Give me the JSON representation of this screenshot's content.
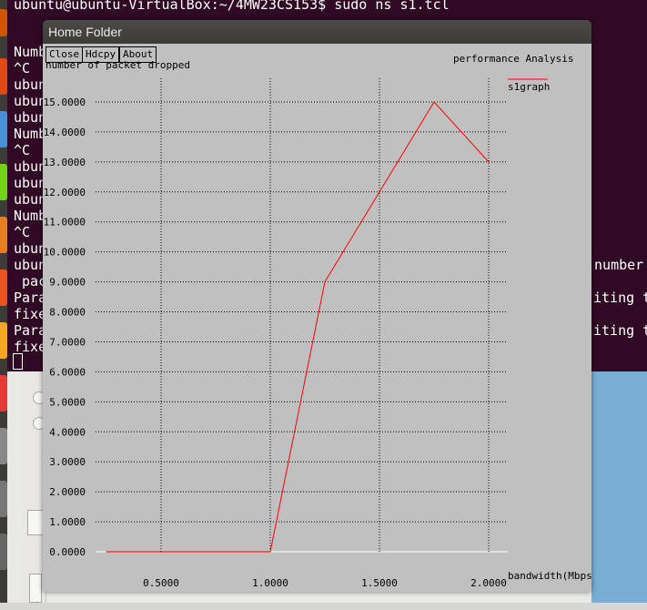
{
  "terminal": {
    "lines": [
      "ubuntu@ubuntu-VirtualBox:~/4MW23CS153$ sudo ns s1.tcl",
      "Numb",
      "^C",
      "ubun",
      "ubun",
      "ubun",
      "Numb",
      "^C",
      "ubun",
      "ubun",
      "ubun",
      "Numb",
      "^C",
      "ubun",
      "ubun",
      " pac",
      "Para",
      "fixe",
      "Para",
      "fixe"
    ],
    "right_texts": [
      "'number",
      "iting to",
      "iting to"
    ]
  },
  "window": {
    "title": "Home Folder",
    "buttons": {
      "close": "Close",
      "hdcpy": "Hdcpy",
      "about": "About"
    }
  },
  "chart_data": {
    "type": "line",
    "title": "performance Analysis",
    "xlabel": "bandwidth(Mbps)",
    "ylabel": "number of packet dropped",
    "xlim": [
      0.25,
      2.1
    ],
    "ylim": [
      0,
      15.0
    ],
    "x_ticks": [
      "0.5000",
      "1.0000",
      "1.5000",
      "2.0000"
    ],
    "y_ticks": [
      "0.0000",
      "1.0000",
      "2.0000",
      "3.0000",
      "4.0000",
      "5.0000",
      "6.0000",
      "7.0000",
      "8.0000",
      "9.0000",
      "10.0000",
      "11.0000",
      "12.0000",
      "13.0000",
      "14.0000",
      "15.0000"
    ],
    "grid": true,
    "series": [
      {
        "name": "s1graph",
        "color": "#ff0000",
        "x": [
          0.25,
          1.0,
          1.25,
          1.75,
          2.0
        ],
        "y": [
          0,
          0,
          9,
          15,
          13
        ]
      }
    ]
  }
}
